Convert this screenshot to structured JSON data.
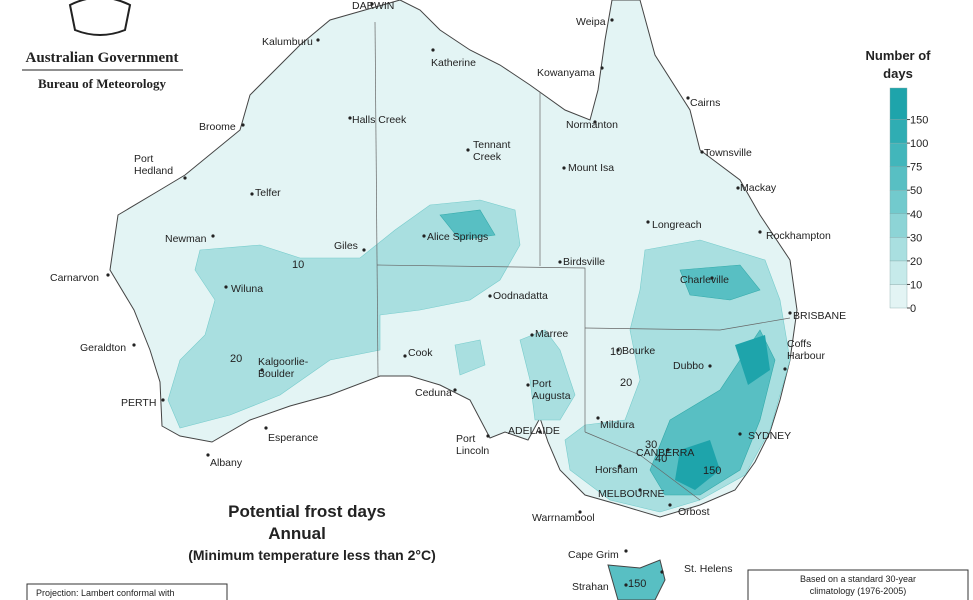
{
  "header": {
    "agency": "Australian Government",
    "bureau": "Bureau of Meteorology"
  },
  "title": {
    "line1": "Potential frost days",
    "line2": "Annual",
    "line3": "(Minimum temperature less than 2°C)"
  },
  "legend": {
    "title": [
      "Number of",
      "days"
    ],
    "levels": [
      0,
      10,
      20,
      30,
      40,
      50,
      75,
      100,
      150
    ],
    "colors": [
      "#e3f4f4",
      "#c6eaea",
      "#a9dfe0",
      "#8dd4d6",
      "#72cacd",
      "#58bfc3",
      "#42b6bb",
      "#2fadb3",
      "#1ea4ab"
    ]
  },
  "places": [
    [
      "DARWIN"
    ],
    [
      "Weipa"
    ],
    [
      "Kalumburu"
    ],
    [
      "Katherine"
    ],
    [
      "Kowanyama"
    ],
    [
      "Cairns"
    ],
    [
      "Broome"
    ],
    [
      "Halls Creek"
    ],
    [
      "Normanton"
    ],
    [
      "Tennant",
      "Creek"
    ],
    [
      "Townsville"
    ],
    [
      "Port",
      "Hedland"
    ],
    [
      "Mount Isa"
    ],
    [
      "Mackay"
    ],
    [
      "Telfer"
    ],
    [
      "Longreach"
    ],
    [
      "Rockhampton"
    ],
    [
      "Newman"
    ],
    [
      "Giles"
    ],
    [
      "Alice Springs"
    ],
    [
      "Birdsville"
    ],
    [
      "Charleville"
    ],
    [
      "Carnarvon"
    ],
    [
      "Wiluna"
    ],
    [
      "Oodnadatta"
    ],
    [
      "BRISBANE"
    ],
    [
      "Marree"
    ],
    [
      "Geraldton"
    ],
    [
      "Cook"
    ],
    [
      "Bourke"
    ],
    [
      "Coffs",
      "Harbour"
    ],
    [
      "Kalgoorlie-",
      "Boulder"
    ],
    [
      "Port",
      "Augusta"
    ],
    [
      "Dubbo"
    ],
    [
      "Ceduna"
    ],
    [
      "PERTH"
    ],
    [
      "Mildura"
    ],
    [
      "Esperance"
    ],
    [
      "ADELAIDE"
    ],
    [
      "SYDNEY"
    ],
    [
      "Port",
      "Lincoln"
    ],
    [
      "CANBERRA"
    ],
    [
      "Horsham"
    ],
    [
      "Albany"
    ],
    [
      "MELBOURNE"
    ],
    [
      "Orbost"
    ],
    [
      "Warrnambool"
    ],
    [
      "Cape Grim"
    ],
    [
      "St. Helens"
    ],
    [
      "Strahan"
    ]
  ],
  "contour_labels": [
    "10",
    "20",
    "10",
    "20",
    "30",
    "40",
    "150",
    "150"
  ],
  "notes": {
    "projection": "Projection: Lambert conformal with",
    "climatology": [
      "Based on a standard 30-year",
      "climatology (1976-2005)"
    ]
  }
}
